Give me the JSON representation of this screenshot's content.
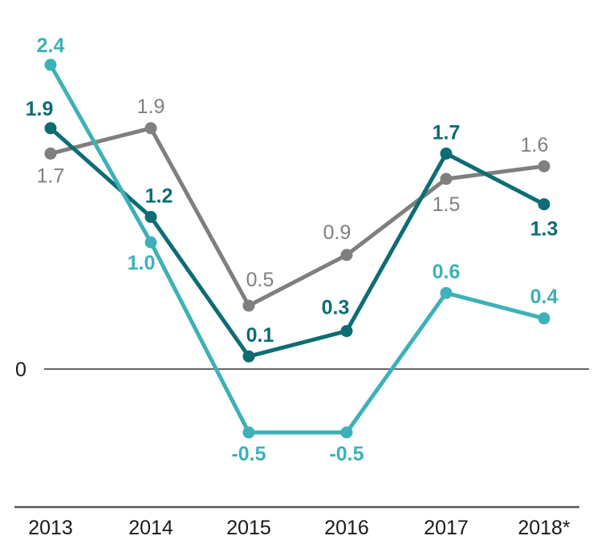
{
  "chart_data": {
    "type": "line",
    "x": [
      "2013",
      "2014",
      "2015",
      "2016",
      "2017",
      "2018*"
    ],
    "ylim": [
      -1.07,
      2.7
    ],
    "y_ticks": [
      "0"
    ],
    "grid": false,
    "legend": "none",
    "series": [
      {
        "color": "#7f7f80",
        "values": [
          1.7,
          1.9,
          0.5,
          0.9,
          1.5,
          1.6
        ],
        "labels": [
          "1.7",
          "1.9",
          "0.5",
          "0.9",
          "1.5",
          "1.6"
        ]
      },
      {
        "color": "#0d6d73",
        "values": [
          1.9,
          1.2,
          0.1,
          0.3,
          1.7,
          1.3
        ],
        "labels": [
          "1.9",
          "1.2",
          "0.1",
          "0.3",
          "1.7",
          "1.3"
        ]
      },
      {
        "color": "#3eb1b8",
        "values": [
          2.4,
          1.0,
          -0.5,
          -0.5,
          0.6,
          0.4
        ],
        "labels": [
          "2.4",
          "1.0",
          "-0.5",
          "-0.5",
          "0.6",
          "0.4"
        ]
      }
    ]
  }
}
